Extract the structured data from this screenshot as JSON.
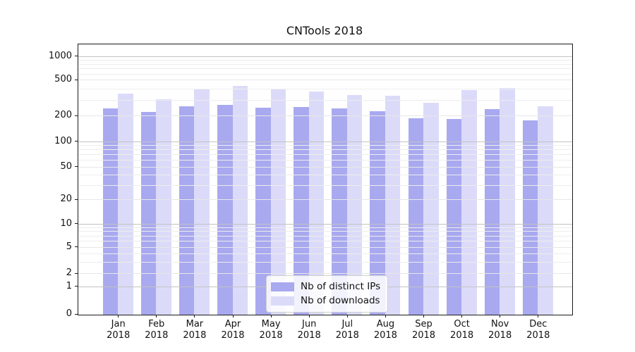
{
  "title": "CNTools 2018",
  "chart_data": {
    "type": "bar",
    "title": "CNTools 2018",
    "categories": [
      "Jan 2018",
      "Feb 2018",
      "Mar 2018",
      "Apr 2018",
      "May 2018",
      "Jun 2018",
      "Jul 2018",
      "Aug 2018",
      "Sep 2018",
      "Oct 2018",
      "Nov 2018",
      "Dec 2018"
    ],
    "month_line1": [
      "Jan",
      "Feb",
      "Mar",
      "Apr",
      "May",
      "Jun",
      "Jul",
      "Aug",
      "Sep",
      "Oct",
      "Nov",
      "Dec"
    ],
    "month_line2": [
      "2018",
      "2018",
      "2018",
      "2018",
      "2018",
      "2018",
      "2018",
      "2018",
      "2018",
      "2018",
      "2018",
      "2018"
    ],
    "series": [
      {
        "name": "Nb of distinct IPs",
        "color": "#a9a9f0",
        "values": [
          245,
          224,
          257,
          268,
          248,
          256,
          246,
          227,
          188,
          186,
          242,
          180
        ]
      },
      {
        "name": "Nb of downloads",
        "color": "#dbdbf9",
        "values": [
          360,
          308,
          396,
          434,
          401,
          380,
          348,
          342,
          283,
          391,
          415,
          260
        ]
      }
    ],
    "xlabel": "",
    "ylabel": "",
    "yscale": "symlog",
    "ylim": [
      0,
      1400
    ],
    "yticks": [
      0,
      1,
      2,
      5,
      10,
      20,
      50,
      100,
      200,
      500,
      1000
    ],
    "major_gridline_values": [
      1,
      10,
      100,
      1000
    ],
    "minor_gridline_values": [
      3,
      4,
      6,
      7,
      8,
      9,
      30,
      40,
      60,
      70,
      80,
      90,
      300,
      400,
      600,
      700,
      800,
      900
    ],
    "grid": true,
    "legend_position": "lower center"
  },
  "colors": {
    "distinct_ips_bar": "#a9a9f0",
    "downloads_bar": "#dbdbf9",
    "major_gridline": "#c3c3c3",
    "minor_gridline": "#ededed",
    "axis": "#1a1a1a",
    "background": "#ffffff"
  }
}
